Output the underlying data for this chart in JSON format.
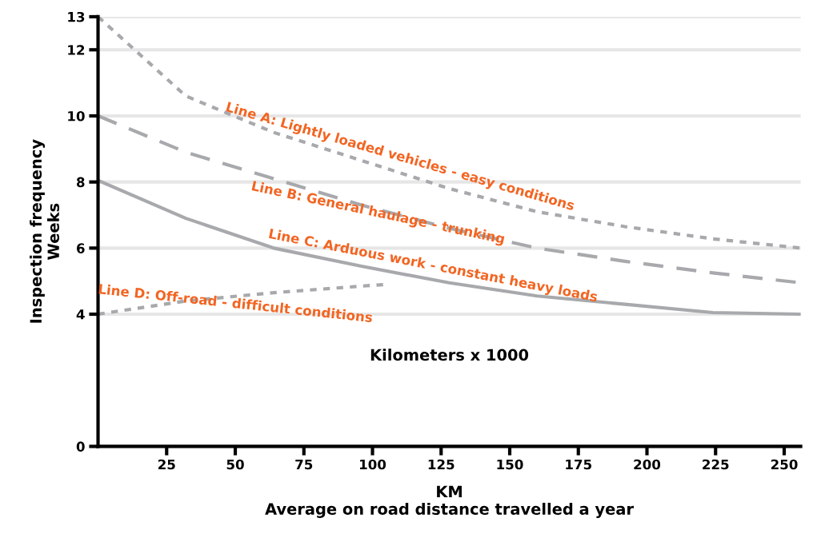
{
  "chart_data": {
    "type": "line",
    "xlabel": "KM\nAverage on road distance travelled a year",
    "ylabel": "Inspection frequency\nWeeks",
    "annotations": [
      "Kilometers x 1000"
    ],
    "xlim": [
      0,
      256
    ],
    "xticks": [
      25,
      50,
      75,
      100,
      125,
      150,
      175,
      200,
      225,
      250
    ],
    "ylim": [
      0,
      13
    ],
    "yticks": [
      0,
      4,
      6,
      8,
      10,
      12,
      13
    ],
    "grid": "y",
    "marker": "none",
    "series": [
      {
        "name": "Line A: Lightly loaded vehicles - easy conditions",
        "color": "#a7a9ac",
        "line_style": "dotted",
        "x": [
          0,
          32,
          64,
          96,
          128,
          160,
          192,
          224,
          256
        ],
        "values": [
          13,
          10.6,
          9.5,
          8.65,
          7.8,
          7.1,
          6.65,
          6.28,
          6.0
        ]
      },
      {
        "name": "Line B: General haulage - trunking",
        "color": "#a7a9ac",
        "line_style": "dashed",
        "x": [
          0,
          32,
          64,
          96,
          128,
          160,
          192,
          224,
          256
        ],
        "values": [
          10,
          8.9,
          8.1,
          7.3,
          6.6,
          6.0,
          5.6,
          5.25,
          4.95
        ]
      },
      {
        "name": "Line C: Arduous work - constant heavy loads",
        "color": "#a7a9ac",
        "line_style": "solid",
        "x": [
          0,
          32,
          64,
          96,
          128,
          160,
          192,
          224,
          256
        ],
        "values": [
          8.05,
          6.9,
          6.0,
          5.45,
          4.95,
          4.55,
          4.3,
          4.05,
          4.0
        ]
      },
      {
        "name": "Line D: Off-road - difficult conditions",
        "color": "#a7a9ac",
        "line_style": "dotted",
        "x": [
          0,
          32,
          64,
          96,
          105
        ],
        "values": [
          4.0,
          4.4,
          4.65,
          4.85,
          4.9
        ]
      }
    ]
  }
}
